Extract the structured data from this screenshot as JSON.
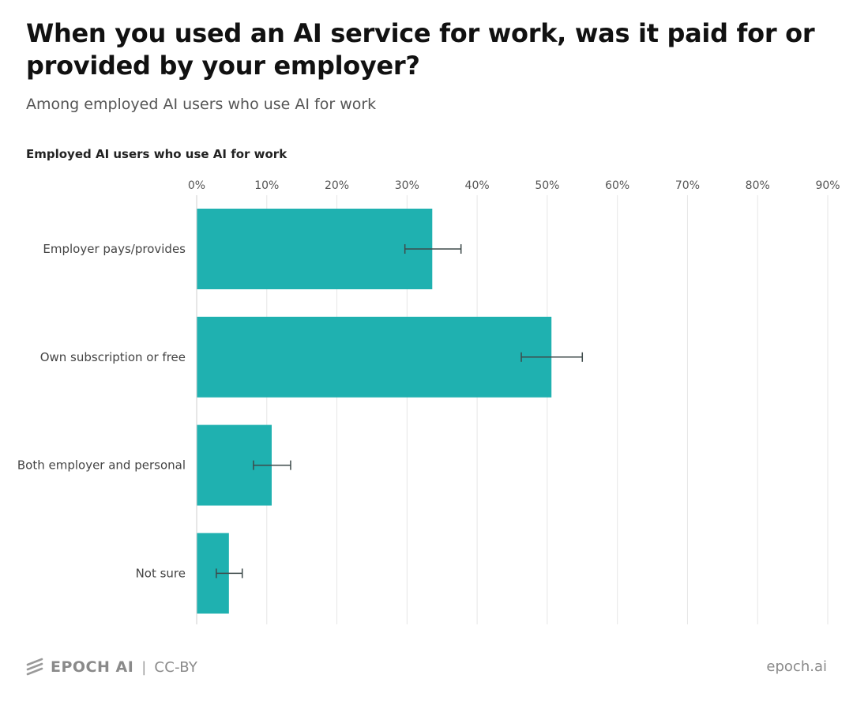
{
  "header": {
    "title": "When you used an AI service for work, was it paid for or provided by your employer?",
    "subtitle": "Among employed AI users who use AI for work"
  },
  "panel": {
    "label": "Employed AI users who use AI for work"
  },
  "colors": {
    "bar": "#1fb1b0",
    "grid": "#e6e6e6",
    "axis": "#cfcfcf",
    "error_bar": "#3d4a4a",
    "tick_text": "#555555",
    "category_text": "#444444"
  },
  "chart_data": {
    "type": "bar",
    "orientation": "horizontal",
    "categories": [
      "Employer pays/provides",
      "Own subscription or free",
      "Both employer and personal",
      "Not sure"
    ],
    "values": [
      33.6,
      50.6,
      10.7,
      4.6
    ],
    "error_low": [
      29.7,
      46.3,
      8.1,
      2.8
    ],
    "error_high": [
      37.7,
      55.0,
      13.4,
      6.5
    ],
    "x_ticks": [
      0,
      10,
      20,
      30,
      40,
      50,
      60,
      70,
      80,
      90
    ],
    "x_tick_labels": [
      "0%",
      "10%",
      "20%",
      "30%",
      "40%",
      "50%",
      "60%",
      "70%",
      "80%",
      "90%"
    ],
    "xlim": [
      0,
      90
    ],
    "x_axis_position": "top",
    "grid": true,
    "legend": "none"
  },
  "footer": {
    "brand": "EPOCH AI",
    "separator": "|",
    "license": "CC-BY",
    "site": "epoch.ai",
    "logo_icon": "epoch-logo-icon"
  }
}
